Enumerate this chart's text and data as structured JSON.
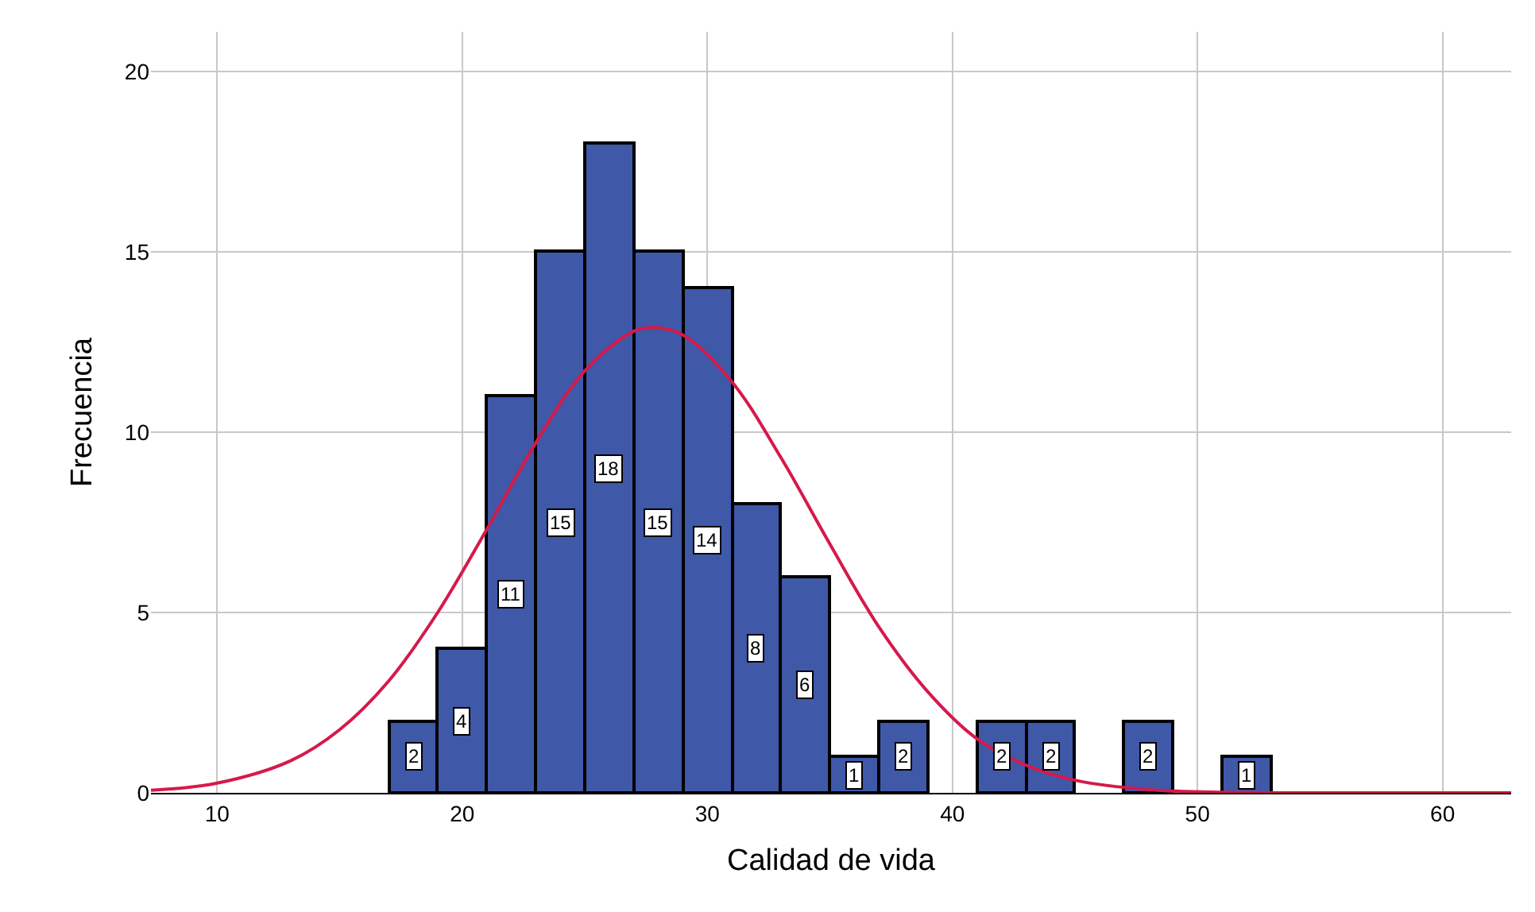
{
  "chart_data": {
    "type": "histogram",
    "xlabel": "Calidad de vida",
    "ylabel": "Frecuencia",
    "bins": [
      17,
      19,
      21,
      23,
      25,
      27,
      29,
      31,
      33,
      35,
      37,
      39,
      41,
      43,
      45,
      47,
      49,
      51,
      53
    ],
    "values": [
      2,
      4,
      11,
      15,
      18,
      15,
      14,
      8,
      6,
      1,
      2,
      0,
      2,
      2,
      0,
      2,
      0,
      1
    ],
    "color": "#3f58a8",
    "value_labels": [
      "2",
      "4",
      "11",
      "15",
      "18",
      "15",
      "14",
      "8",
      "6",
      "1",
      "2",
      null,
      "2",
      "2",
      null,
      "2",
      null,
      "1"
    ],
    "series": [
      {
        "type": "line",
        "color": "#d6194a",
        "x": [
          7.3,
          10,
          13,
          15,
          17,
          19,
          21,
          23,
          25,
          27,
          27.8,
          29,
          31,
          33,
          35,
          37,
          39,
          41,
          43,
          45,
          48,
          52,
          56,
          62.8
        ],
        "values": [
          0.07,
          0.27,
          0.89,
          1.75,
          3.1,
          5.0,
          7.3,
          9.7,
          11.7,
          12.8,
          12.9,
          12.7,
          11.4,
          9.3,
          6.9,
          4.6,
          2.8,
          1.5,
          0.77,
          0.35,
          0.09,
          0.01,
          0,
          0
        ]
      }
    ],
    "xlim": [
      7.3,
      62.8
    ],
    "xticks": [
      10,
      20,
      30,
      40,
      50,
      60
    ],
    "ylim": [
      0,
      21.1
    ],
    "yticks": [
      0,
      5,
      10,
      15,
      20
    ],
    "grid": true
  }
}
